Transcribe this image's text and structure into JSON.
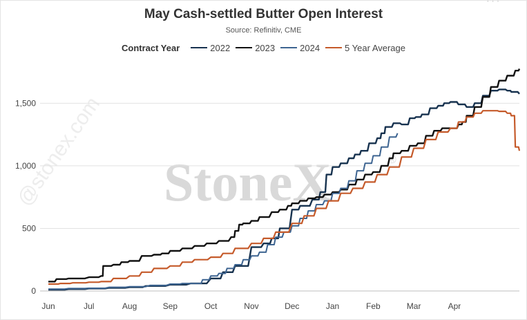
{
  "chart_data": {
    "type": "line",
    "title": "May Cash-settled Butter Open Interest",
    "subtitle": "Source: Refinitiv, CME",
    "legend_title": "Contract Year",
    "legend_position": "top-center",
    "xlabel": "",
    "ylabel": "",
    "ylim": [
      0,
      1800
    ],
    "yticks": [
      0,
      500,
      1000,
      1500
    ],
    "ytick_labels": [
      "0",
      "500",
      "1,000",
      "1,500"
    ],
    "xlim": [
      0,
      11.6
    ],
    "x_categories": [
      "Jun",
      "Jul",
      "Aug",
      "Sep",
      "Oct",
      "Nov",
      "Dec",
      "Jan",
      "Feb",
      "Mar",
      "Apr"
    ],
    "grid": {
      "horizontal": true,
      "vertical": false
    },
    "series": [
      {
        "name": "2022",
        "color": "#17324f",
        "width": 2.4,
        "x": [
          0,
          0.5,
          1,
          1.5,
          2,
          2.4,
          3,
          3.5,
          4,
          4.3,
          4.6,
          5,
          5.3,
          5.5,
          5.7,
          6,
          6.2,
          6.5,
          6.7,
          6.85,
          7.0,
          7.2,
          7.4,
          7.55,
          7.7,
          7.9,
          8.1,
          8.2,
          8.3,
          8.5,
          8.7,
          8.9,
          9.05,
          9.2,
          9.4,
          9.6,
          9.75,
          9.9,
          10.1,
          10.3,
          10.5,
          10.7,
          10.9,
          11.1,
          11.3,
          11.4,
          11.6
        ],
        "values": [
          10,
          15,
          20,
          25,
          30,
          40,
          50,
          60,
          100,
          150,
          200,
          350,
          380,
          420,
          500,
          650,
          680,
          730,
          790,
          930,
          990,
          1020,
          1060,
          1090,
          1120,
          1180,
          1220,
          1260,
          1310,
          1340,
          1330,
          1380,
          1390,
          1410,
          1460,
          1480,
          1500,
          1510,
          1490,
          1470,
          1500,
          1560,
          1600,
          1610,
          1600,
          1590,
          1575
        ]
      },
      {
        "name": "2023",
        "color": "#111111",
        "width": 2.4,
        "x": [
          0,
          0.2,
          0.5,
          1,
          1.3,
          1.35,
          1.6,
          1.8,
          2,
          2.3,
          2.6,
          2.8,
          3,
          3.3,
          3.6,
          3.9,
          4.2,
          4.5,
          4.6,
          4.7,
          4.8,
          5,
          5.2,
          5.5,
          5.7,
          5.9,
          6,
          6.2,
          6.4,
          6.6,
          6.8,
          7.0,
          7.2,
          7.4,
          7.6,
          7.8,
          8,
          8.2,
          8.4,
          8.5,
          8.7,
          8.9,
          9.1,
          9.3,
          9.5,
          9.7,
          9.9,
          10.1,
          10.2,
          10.3,
          10.5,
          10.7,
          10.9,
          11.1,
          11.3,
          11.5,
          11.6
        ],
        "values": [
          75,
          95,
          100,
          110,
          120,
          200,
          210,
          230,
          240,
          280,
          290,
          300,
          320,
          340,
          360,
          380,
          400,
          430,
          480,
          530,
          540,
          560,
          590,
          630,
          650,
          680,
          700,
          720,
          740,
          750,
          770,
          790,
          810,
          850,
          890,
          930,
          950,
          1000,
          1060,
          1100,
          1120,
          1160,
          1180,
          1240,
          1280,
          1300,
          1300,
          1330,
          1350,
          1400,
          1470,
          1550,
          1630,
          1680,
          1720,
          1760,
          1775
        ]
      },
      {
        "name": "2024",
        "color": "#3d6491",
        "width": 2.0,
        "x": [
          0,
          0.5,
          1,
          1.5,
          2,
          2.5,
          3,
          3.3,
          3.6,
          3.8,
          4,
          4.2,
          4.4,
          4.6,
          4.8,
          5,
          5.2,
          5.4,
          5.6,
          5.8,
          6,
          6.2,
          6.4,
          6.6,
          6.8,
          7.0,
          7.2,
          7.4,
          7.6,
          7.8,
          8.0,
          8.2,
          8.4,
          8.6
        ],
        "values": [
          15,
          20,
          22,
          30,
          35,
          45,
          55,
          60,
          60,
          90,
          120,
          140,
          180,
          210,
          250,
          280,
          310,
          370,
          430,
          470,
          520,
          580,
          640,
          690,
          720,
          780,
          820,
          880,
          960,
          1020,
          1080,
          1150,
          1230,
          1260
        ]
      },
      {
        "name": "5 Year Average",
        "color": "#c55a2a",
        "width": 2.2,
        "x": [
          0,
          0.3,
          0.6,
          1,
          1.3,
          1.6,
          2,
          2.3,
          2.6,
          3,
          3.3,
          3.6,
          4,
          4.3,
          4.6,
          5,
          5.3,
          5.6,
          6,
          6.3,
          6.6,
          6.9,
          7.2,
          7.5,
          7.8,
          8.1,
          8.4,
          8.7,
          9.0,
          9.3,
          9.6,
          9.9,
          10.1,
          10.3,
          10.5,
          10.7,
          10.9,
          11.1,
          11.3,
          11.4,
          11.5,
          11.6
        ],
        "values": [
          55,
          60,
          65,
          70,
          75,
          100,
          120,
          150,
          180,
          200,
          230,
          250,
          270,
          300,
          340,
          380,
          420,
          470,
          540,
          600,
          660,
          720,
          780,
          820,
          870,
          930,
          990,
          1070,
          1140,
          1210,
          1270,
          1300,
          1350,
          1390,
          1420,
          1440,
          1440,
          1435,
          1420,
          1400,
          1150,
          1120
        ]
      }
    ]
  },
  "watermark": {
    "main": "StoneX",
    "registered": "®",
    "side": "@stonex.com"
  }
}
